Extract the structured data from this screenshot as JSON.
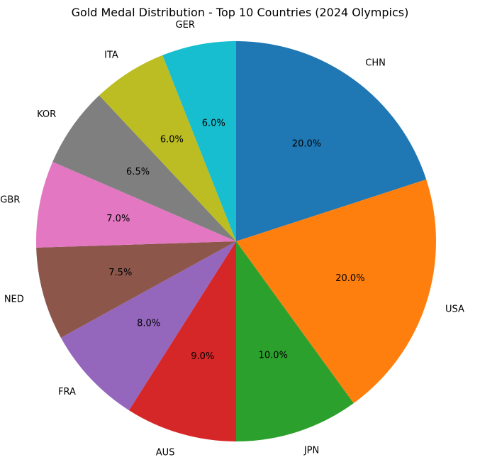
{
  "chart_data": {
    "type": "pie",
    "title": "Gold Medal Distribution - Top 10 Countries (2024 Olympics)",
    "start_angle_deg": 90,
    "direction": "clockwise",
    "slices": [
      {
        "label": "CHN",
        "value": 20.0,
        "pct_text": "20.0%",
        "color": "#1f77b4"
      },
      {
        "label": "USA",
        "value": 20.0,
        "pct_text": "20.0%",
        "color": "#ff7f0e"
      },
      {
        "label": "JPN",
        "value": 10.0,
        "pct_text": "10.0%",
        "color": "#2ca02c"
      },
      {
        "label": "AUS",
        "value": 9.0,
        "pct_text": "9.0%",
        "color": "#d62728"
      },
      {
        "label": "FRA",
        "value": 8.0,
        "pct_text": "8.0%",
        "color": "#9467bd"
      },
      {
        "label": "NED",
        "value": 7.5,
        "pct_text": "7.5%",
        "color": "#8c564b"
      },
      {
        "label": "GBR",
        "value": 7.0,
        "pct_text": "7.0%",
        "color": "#e377c2"
      },
      {
        "label": "KOR",
        "value": 6.5,
        "pct_text": "6.5%",
        "color": "#7f7f7f"
      },
      {
        "label": "ITA",
        "value": 6.0,
        "pct_text": "6.0%",
        "color": "#bcbd22"
      },
      {
        "label": "GER",
        "value": 6.0,
        "pct_text": "6.0%",
        "color": "#17becf"
      }
    ]
  }
}
